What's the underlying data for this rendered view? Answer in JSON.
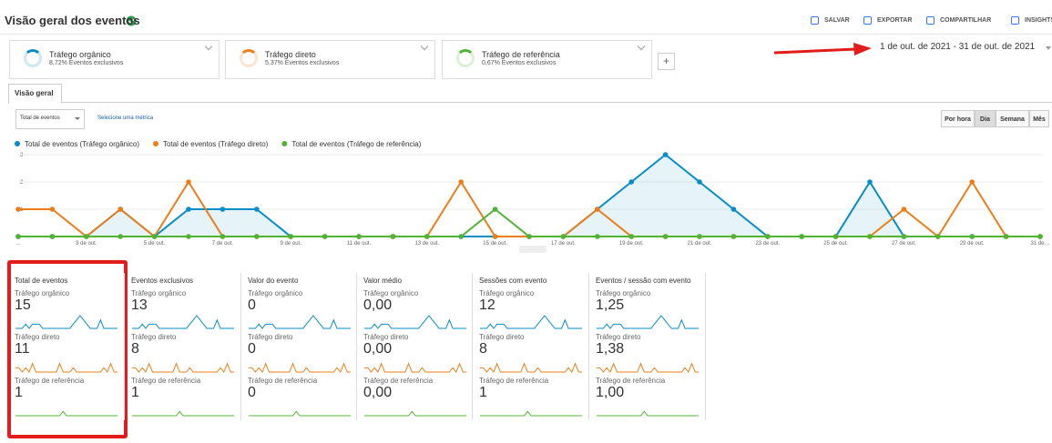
{
  "header": {
    "title": "Visão geral dos eventos",
    "actions": [
      "SALVAR",
      "EXPORTAR",
      "COMPARTILHAR",
      "INSIGHTS"
    ]
  },
  "segments": [
    {
      "name": "Tráfego orgânico",
      "detail": "8,72% Eventos exclusivos",
      "color": "#058dc7"
    },
    {
      "name": "Tráfego direto",
      "detail": "5,37% Eventos exclusivos",
      "color": "#ed7e17"
    },
    {
      "name": "Tráfego de referência",
      "detail": "0,67% Eventos exclusivos",
      "color": "#50b432"
    }
  ],
  "date_range": "1 de out. de 2021 - 31 de out. de 2021",
  "tab": "Visão geral",
  "metric_selector": "Total de eventos",
  "metric_link": "Selecione uma métrica",
  "granularity": [
    "Por hora",
    "Dia",
    "Semana",
    "Mês"
  ],
  "chart_data": {
    "type": "line",
    "categories": [
      "…",
      null,
      "3 de out.",
      null,
      "5 de out.",
      null,
      "7 de out.",
      null,
      "9 de out.",
      null,
      "11 de out.",
      null,
      "13 de out.",
      null,
      "15 de out.",
      null,
      "17 de out.",
      null,
      "19 de out.",
      null,
      "21 de out.",
      null,
      "23 de out.",
      null,
      "25 de out.",
      null,
      "27 de out.",
      null,
      "29 de out.",
      null,
      "31 de…"
    ],
    "series": [
      {
        "name": "Total de eventos (Tráfego orgânico)",
        "color": "#058dc7",
        "values": [
          0,
          0,
          0,
          1,
          0,
          1,
          1,
          1,
          0,
          0,
          0,
          0,
          0,
          0,
          0,
          0,
          0,
          1,
          2,
          3,
          2,
          1,
          0,
          0,
          0,
          2,
          0,
          0,
          0,
          0,
          0
        ]
      },
      {
        "name": "Total de eventos (Tráfego direto)",
        "color": "#ed7e17",
        "values": [
          1,
          1,
          0,
          1,
          0,
          2,
          0,
          0,
          0,
          0,
          0,
          0,
          0,
          2,
          0,
          0,
          0,
          1,
          0,
          0,
          0,
          0,
          0,
          0,
          0,
          0,
          1,
          0,
          2,
          0,
          0
        ]
      },
      {
        "name": "Total de eventos (Tráfego de referência)",
        "color": "#50b432",
        "values": [
          0,
          0,
          0,
          0,
          0,
          0,
          0,
          0,
          0,
          0,
          0,
          0,
          0,
          0,
          1,
          0,
          0,
          0,
          0,
          0,
          0,
          0,
          0,
          0,
          0,
          0,
          0,
          0,
          0,
          0,
          0
        ]
      }
    ],
    "ylim": [
      0,
      3
    ],
    "yticks": [
      1,
      2,
      3
    ],
    "grid": true
  },
  "metrics": [
    {
      "title": "Total de eventos",
      "rows": [
        {
          "segment": "Tráfego orgânico",
          "value": 15
        },
        {
          "segment": "Tráfego direto",
          "value": 11
        },
        {
          "segment": "Tráfego de referência",
          "value": 1
        }
      ]
    },
    {
      "title": "Eventos exclusivos",
      "rows": [
        {
          "segment": "Tráfego orgânico",
          "value": 13
        },
        {
          "segment": "Tráfego direto",
          "value": 8
        },
        {
          "segment": "Tráfego de referência",
          "value": 1
        }
      ]
    },
    {
      "title": "Valor do evento",
      "rows": [
        {
          "segment": "Tráfego orgânico",
          "value": 0
        },
        {
          "segment": "Tráfego direto",
          "value": 0
        },
        {
          "segment": "Tráfego de referência",
          "value": 0
        }
      ]
    },
    {
      "title": "Valor médio",
      "rows": [
        {
          "segment": "Tráfego orgânico",
          "value": "0,00"
        },
        {
          "segment": "Tráfego direto",
          "value": "0,00"
        },
        {
          "segment": "Tráfego de referência",
          "value": "0,00"
        }
      ]
    },
    {
      "title": "Sessões com evento",
      "rows": [
        {
          "segment": "Tráfego orgânico",
          "value": 12
        },
        {
          "segment": "Tráfego direto",
          "value": 8
        },
        {
          "segment": "Tráfego de referência",
          "value": 1
        }
      ]
    },
    {
      "title": "Eventos / sessão com evento",
      "rows": [
        {
          "segment": "Tráfego orgânico",
          "value": "1,25"
        },
        {
          "segment": "Tráfego direto",
          "value": "1,38"
        },
        {
          "segment": "Tráfego de referência",
          "value": "1,00"
        }
      ]
    }
  ]
}
